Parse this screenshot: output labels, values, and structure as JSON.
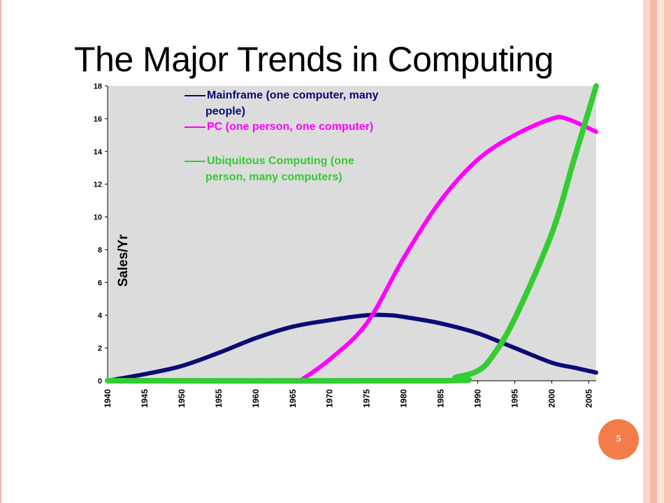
{
  "slide": {
    "page_number": "5",
    "colors": {
      "badge": "#f47c4a",
      "frame_line": "#f2b8a6",
      "plot_background": "#dcdcdc",
      "deco_stripes": [
        "#f9d7cc",
        "#f3b9a5",
        "#fbe3da",
        "#f6c7b6"
      ]
    }
  },
  "chart_data": {
    "type": "line",
    "title": "The Major Trends in Computing",
    "xlabel": "",
    "ylabel": "Sales/Yr",
    "xlim": [
      1940,
      2006
    ],
    "ylim": [
      0,
      18
    ],
    "x_ticks": [
      "1940",
      "1945",
      "1950",
      "1955",
      "1960",
      "1965",
      "1970",
      "1975",
      "1980",
      "1985",
      "1990",
      "1995",
      "2000",
      "2005"
    ],
    "y_ticks": [
      "0",
      "2",
      "4",
      "6",
      "8",
      "10",
      "12",
      "14",
      "16",
      "18"
    ],
    "grid": false,
    "legend_position": "top-left-inside",
    "series": [
      {
        "name": "Mainframe (one computer, many people)",
        "legend_lines": [
          "Mainframe (one computer, many",
          "people)"
        ],
        "color": "#0a0a78",
        "x": [
          1940,
          1945,
          1950,
          1955,
          1960,
          1965,
          1970,
          1975,
          1978,
          1980,
          1985,
          1990,
          1995,
          2000,
          2003,
          2006
        ],
        "y": [
          0,
          0.4,
          0.9,
          1.7,
          2.6,
          3.3,
          3.7,
          4.0,
          4.0,
          3.9,
          3.5,
          2.9,
          2.0,
          1.1,
          0.8,
          0.5
        ]
      },
      {
        "name": "PC (one person, one computer)",
        "legend_lines": [
          "PC (one person, one computer)"
        ],
        "color": "#ff00ff",
        "x": [
          1966,
          1970,
          1975,
          1980,
          1985,
          1990,
          1995,
          2000,
          2002,
          2006
        ],
        "y": [
          0,
          1.3,
          3.5,
          7.5,
          11.0,
          13.5,
          15.0,
          16.0,
          16.0,
          15.2
        ]
      },
      {
        "name": "Ubiquitous Computing (one person, many computers)",
        "legend_lines": [
          "Ubiquitous Computing (one",
          "person, many computers)"
        ],
        "color": "#33cc33",
        "x": [
          1940,
          1985,
          1987,
          1990,
          1992,
          1995,
          2000,
          2003,
          2006
        ],
        "y": [
          0,
          0,
          0.2,
          0.6,
          1.5,
          3.8,
          9.0,
          13.5,
          18
        ]
      }
    ]
  }
}
